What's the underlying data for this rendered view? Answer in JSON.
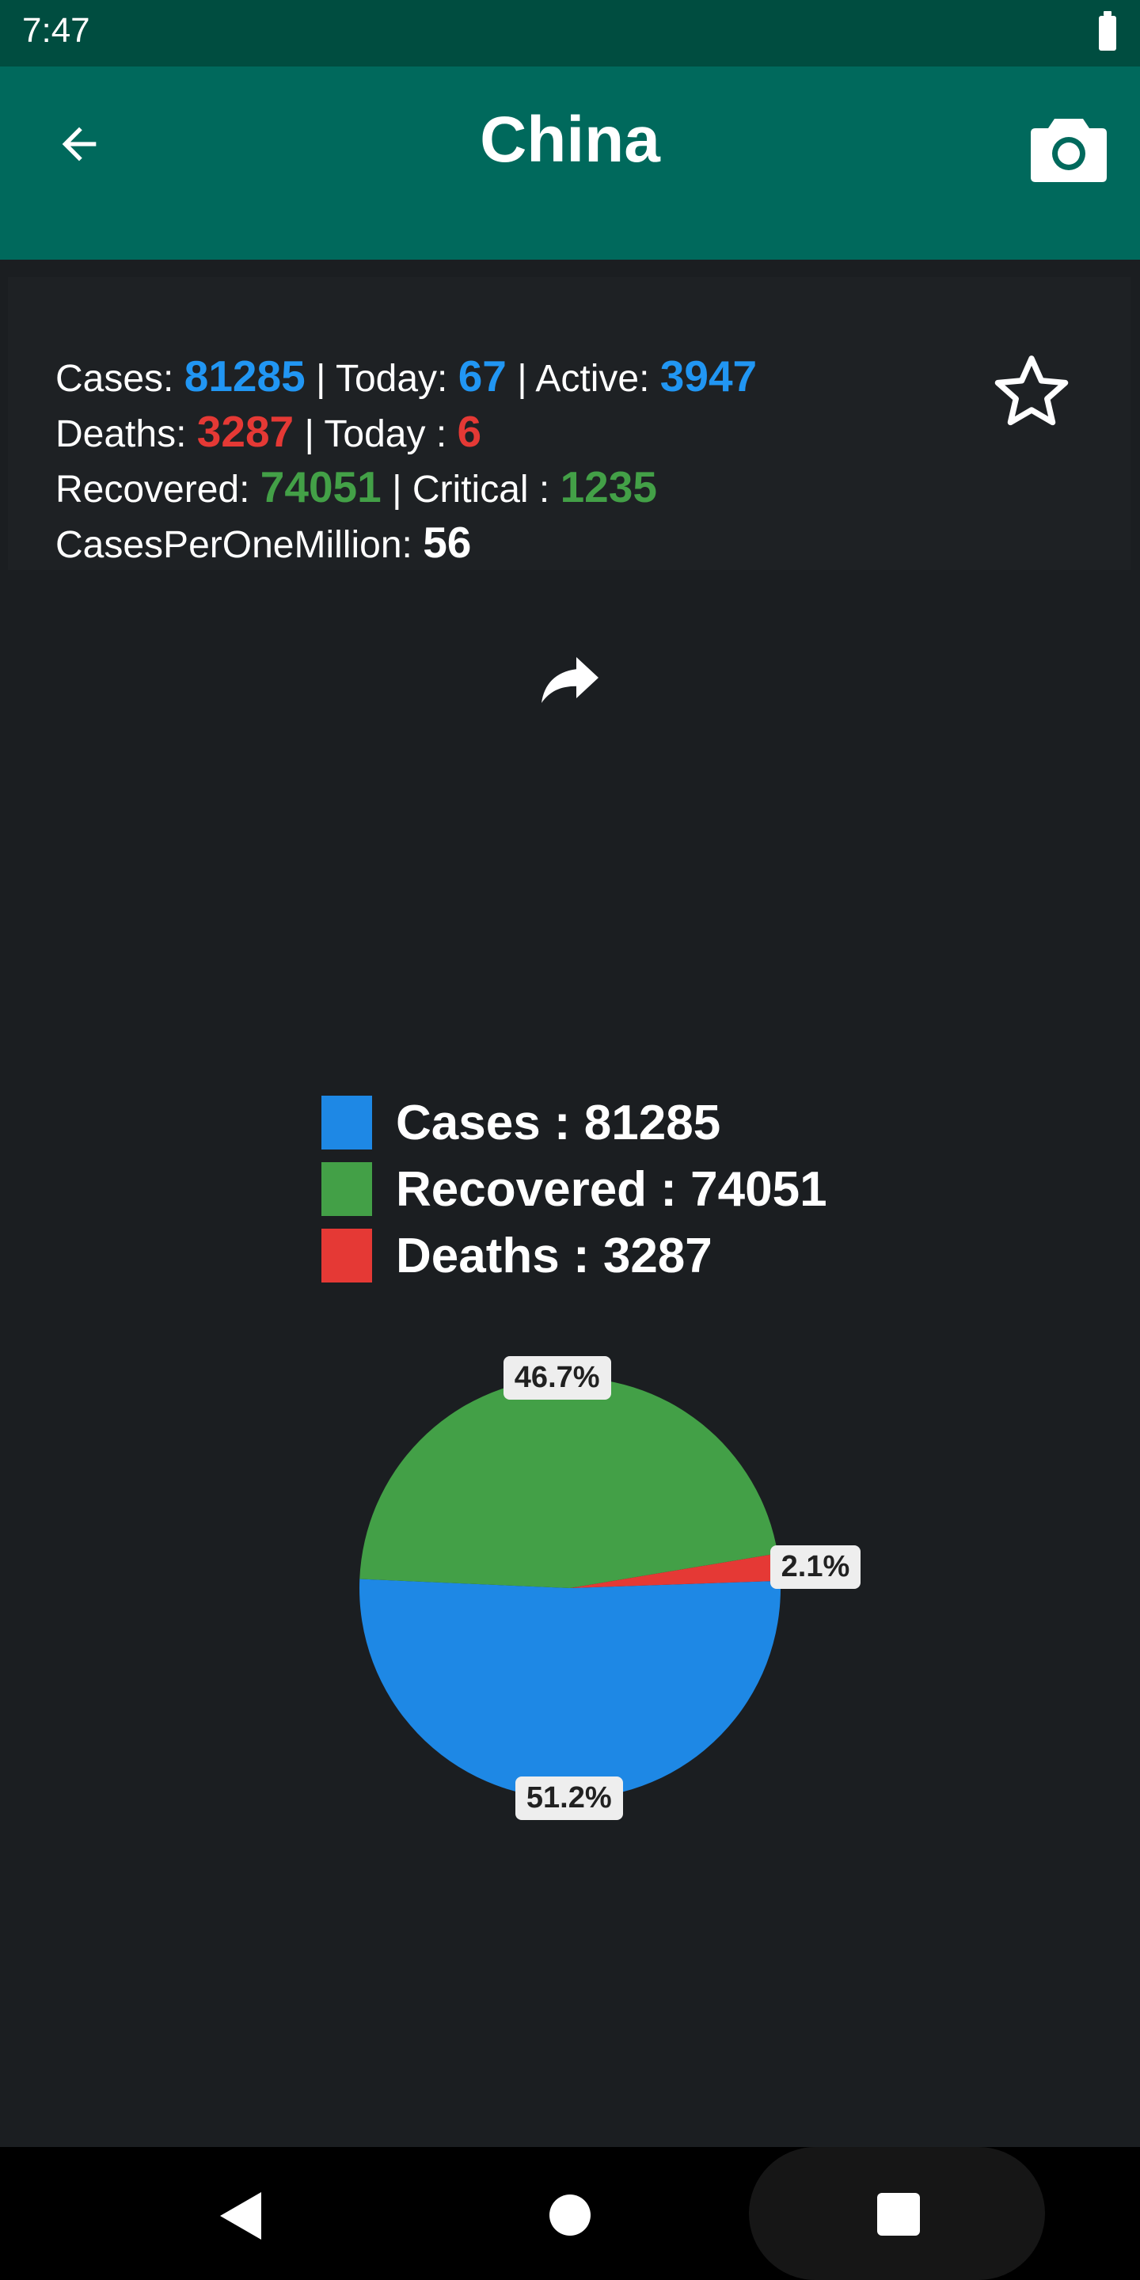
{
  "status_bar": {
    "time": "7:47"
  },
  "app_bar": {
    "title": "China"
  },
  "stats": {
    "cases_label": "Cases: ",
    "cases_value": "81285",
    "today_label": " | Today: ",
    "today_value": "67",
    "active_label": " | Active: ",
    "active_value": "3947",
    "deaths_label": "Deaths: ",
    "deaths_value": "3287",
    "deaths_today_label": " | Today : ",
    "deaths_today_value": "6",
    "recovered_label": "Recovered: ",
    "recovered_value": "74051",
    "critical_label": " | Critical : ",
    "critical_value": "1235",
    "cpm_label": "CasesPerOneMillion: ",
    "cpm_value": "56"
  },
  "legend": {
    "cases": "Cases : 81285",
    "recovered": "Recovered : 74051",
    "deaths": "Deaths : 3287"
  },
  "colors": {
    "cases": "#1e88e5",
    "recovered": "#43a047",
    "deaths": "#e53935"
  },
  "icons": {
    "back": "arrow-left-icon",
    "camera": "camera-icon",
    "star": "star-outline-icon",
    "share": "share-arrow-icon"
  },
  "chart_data": {
    "type": "pie",
    "slices": [
      {
        "name": "Cases",
        "value": 81285,
        "percent_label": "51.2%"
      },
      {
        "name": "Recovered",
        "value": 74051,
        "percent_label": "46.7%"
      },
      {
        "name": "Deaths",
        "value": 3287,
        "percent_label": "2.1%"
      }
    ]
  }
}
